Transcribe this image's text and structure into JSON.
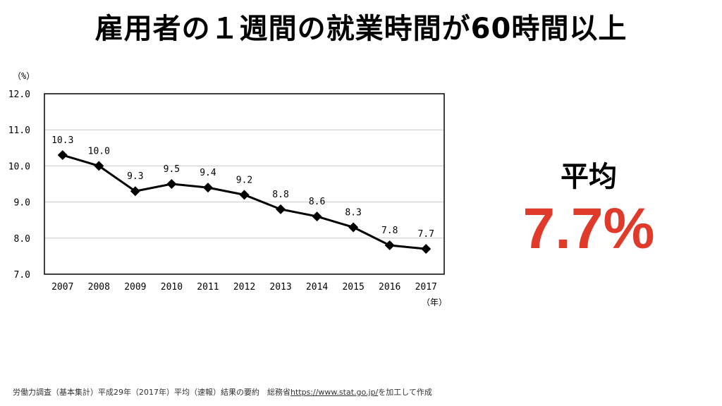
{
  "title": "雇用者の１週間の就業時間が60時間以上",
  "average": {
    "label": "平均",
    "value": "7.7%",
    "color": "#e03a2a"
  },
  "footer": {
    "source": "労働力調査（基本集計）平成29年（2017年）平均（速報）結果の要約　総務省",
    "link": "https://www.stat.go.jp/",
    "suffix": "を加工して作成"
  },
  "chart_data": {
    "type": "line",
    "ylabel": "（%）",
    "xlabel": "（年）",
    "categories": [
      "2007",
      "2008",
      "2009",
      "2010",
      "2011",
      "2012",
      "2013",
      "2014",
      "2015",
      "2016",
      "2017"
    ],
    "values": [
      10.3,
      10.0,
      9.3,
      9.5,
      9.4,
      9.2,
      8.8,
      8.6,
      8.3,
      7.8,
      7.7
    ],
    "data_labels": [
      "10.3",
      "10.0",
      "9.3",
      "9.5",
      "9.4",
      "9.2",
      "8.8",
      "8.6",
      "8.3",
      "7.8",
      "7.7"
    ],
    "ylim": [
      7.0,
      12.0
    ],
    "yticks": [
      "7.0",
      "8.0",
      "9.0",
      "10.0",
      "11.0",
      "12.0"
    ],
    "grid": true,
    "marker": "diamond",
    "line_color": "#000000"
  }
}
